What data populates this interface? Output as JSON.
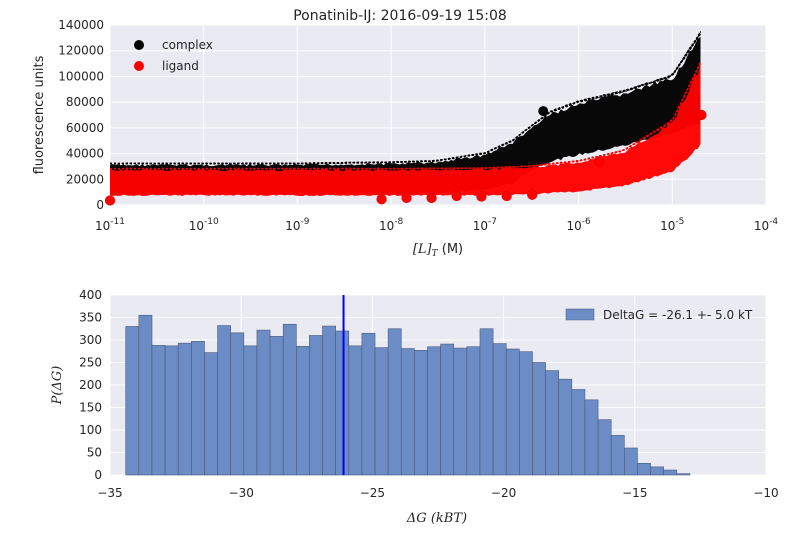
{
  "chart_data": [
    {
      "type": "scatter",
      "title": "Ponatinib-IJ: 2016-09-19 15:08",
      "xlabel": "[L]",
      "xlabel_subscript": "T",
      "xlabel_unit": " (M)",
      "ylabel": "fluorescence units",
      "xscale": "log",
      "xlim": [
        1e-11,
        0.0001
      ],
      "ylim": [
        0,
        140000
      ],
      "xtick_exponents": [
        "-11",
        "-10",
        "-9",
        "-8",
        "-7",
        "-6",
        "-5",
        "-4"
      ],
      "ytick_labels": [
        "0",
        "20000",
        "40000",
        "60000",
        "80000",
        "100000",
        "120000",
        "140000"
      ],
      "grid": true,
      "legend_position": "top-left",
      "series": [
        {
          "name": "complex",
          "color": "#000000",
          "data_points": {
            "x": [
              1e-11,
              7.9e-09,
              1.46e-08,
              2.7e-08,
              5e-08,
              9.2e-08,
              1.71e-07,
              3.2e-07,
              4.2e-07,
              1.66e-06,
              2.05e-05
            ],
            "y": [
              3500,
              4500,
              5500,
              5500,
              7000,
              6500,
              7000,
              8000,
              73000,
              34000,
              70000
            ]
          },
          "band": {
            "x": [
              1e-11,
              1e-09,
              1e-08,
              3e-08,
              1e-07,
              2e-07,
              3e-07,
              5e-07,
              1e-06,
              3e-06,
              1e-05,
              2e-05
            ],
            "lower": [
              8000,
              8000,
              8000,
              8500,
              11000,
              16000,
              26000,
              33000,
              38000,
              45000,
              55000,
              62000
            ],
            "upper": [
              32000,
              32000,
              33000,
              34000,
              40000,
              50000,
              60000,
              72000,
              80000,
              88000,
              100000,
              133000
            ]
          }
        },
        {
          "name": "ligand",
          "color": "#ff0000",
          "data_points": {
            "x": [
              1e-11,
              7.9e-09,
              1.46e-08,
              2.7e-08,
              5e-08,
              9.2e-08,
              1.71e-07,
              3.2e-07,
              1.66e-06,
              2.05e-05
            ],
            "y": [
              3500,
              4500,
              5500,
              5500,
              7000,
              6500,
              7000,
              8000,
              34000,
              70000
            ]
          },
          "band": {
            "x": [
              1e-11,
              1e-09,
              1e-08,
              1e-07,
              3e-07,
              1e-06,
              3e-06,
              1e-05,
              2e-05
            ],
            "lower": [
              7000,
              7000,
              7000,
              7000,
              8000,
              10000,
              14000,
              25000,
              45000
            ],
            "upper": [
              28000,
              28000,
              28000,
              28500,
              30000,
              34000,
              42000,
              65000,
              110000
            ]
          }
        }
      ]
    },
    {
      "type": "bar",
      "subtype": "histogram",
      "xlabel": "ΔG",
      "xlabel_unit": "(kBT)",
      "ylabel": "P(ΔG)",
      "xlim": [
        -35,
        -10
      ],
      "ylim": [
        0,
        400
      ],
      "xtick_labels": [
        "−35",
        "−30",
        "−25",
        "−20",
        "−15",
        "−10"
      ],
      "ytick_labels": [
        "0",
        "50",
        "100",
        "150",
        "200",
        "250",
        "300",
        "350",
        "400"
      ],
      "grid": true,
      "legend_position": "top-right",
      "bins": {
        "start": -34.4,
        "width": 0.5,
        "counts": [
          330,
          355,
          288,
          287,
          293,
          297,
          272,
          332,
          316,
          287,
          322,
          308,
          335,
          286,
          310,
          331,
          320,
          287,
          315,
          283,
          325,
          281,
          277,
          285,
          291,
          282,
          285,
          325,
          292,
          280,
          274,
          250,
          232,
          213,
          190,
          167,
          123,
          88,
          60,
          26,
          18,
          11,
          3
        ]
      },
      "series": [
        {
          "name": "DeltaG = -26.1 +- 5.0 kT",
          "color": "#6b8cc4"
        }
      ],
      "mean_line": {
        "x": -26.1,
        "color": "#0000ff"
      }
    }
  ]
}
